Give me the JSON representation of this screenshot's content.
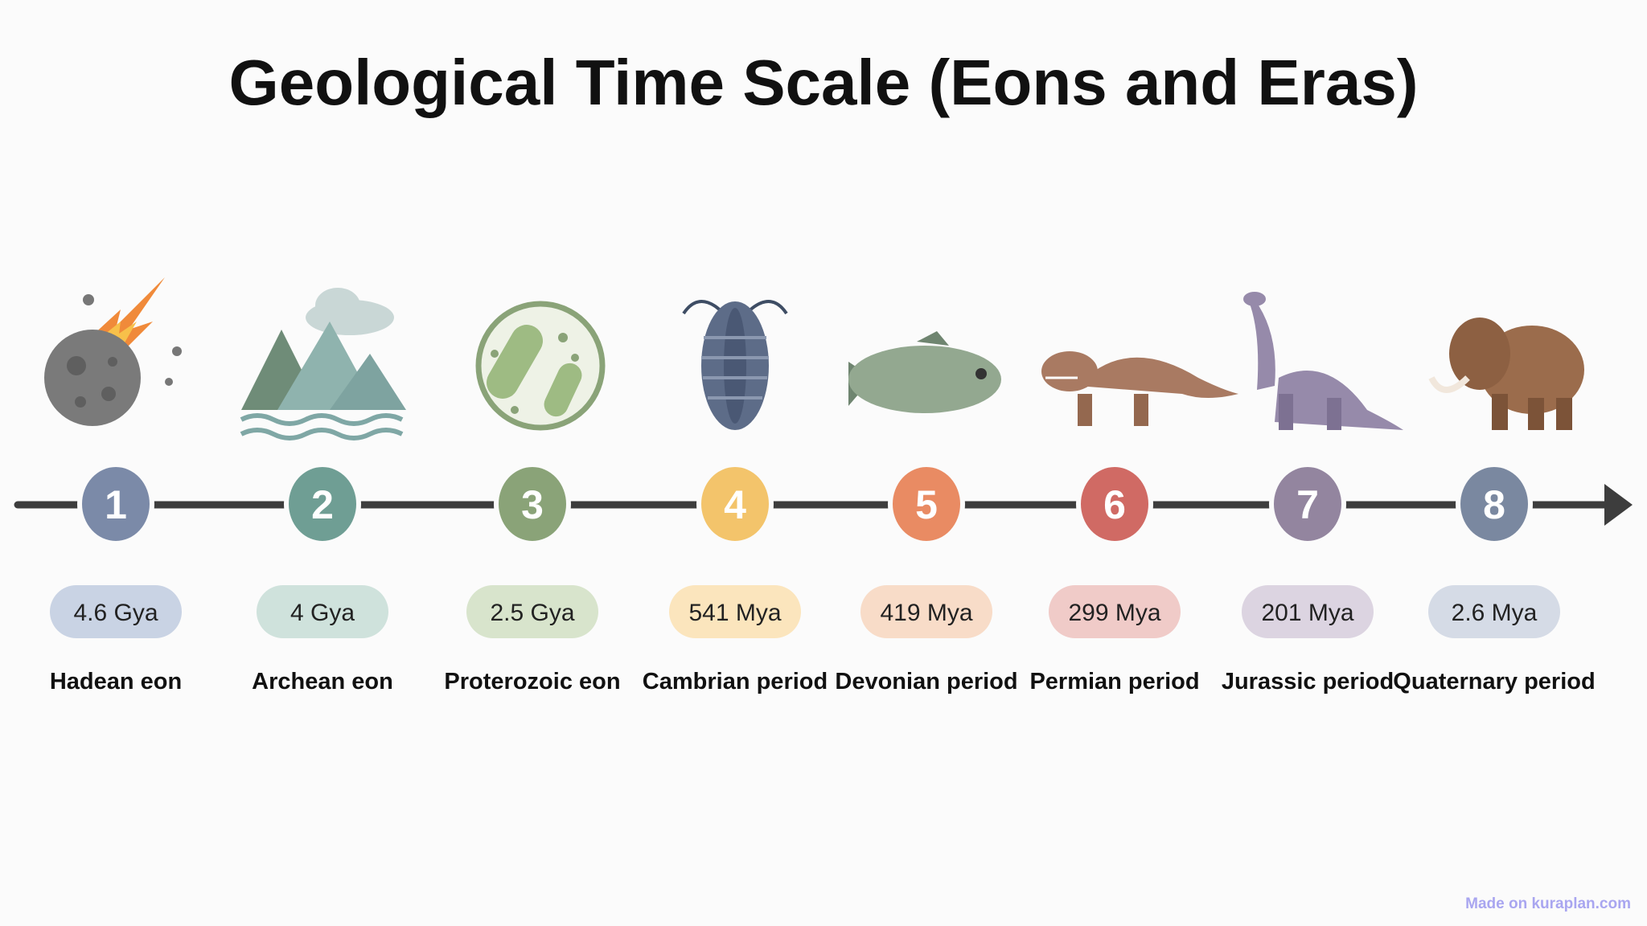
{
  "title": "Geological Time Scale (Eons and Eras)",
  "items": [
    {
      "number": 1,
      "date": "4.6 Gya",
      "label": "Hadean eon"
    },
    {
      "number": 2,
      "date": "4 Gya",
      "label": "Archean eon"
    },
    {
      "number": 3,
      "date": "2.5 Gya",
      "label": "Proterozoic eon"
    },
    {
      "number": 4,
      "date": "541 Mya",
      "label": "Cambrian period"
    },
    {
      "number": 5,
      "date": "419 Mya",
      "label": "Devonian period"
    },
    {
      "number": 6,
      "date": "299 Mya",
      "label": "Permian period"
    },
    {
      "number": 7,
      "date": "201 Mya",
      "label": "Jurassic period"
    },
    {
      "number": 8,
      "date": "2.6 Mya",
      "label": "Quaternary period"
    }
  ],
  "footer": "Made on kuraplan.com"
}
